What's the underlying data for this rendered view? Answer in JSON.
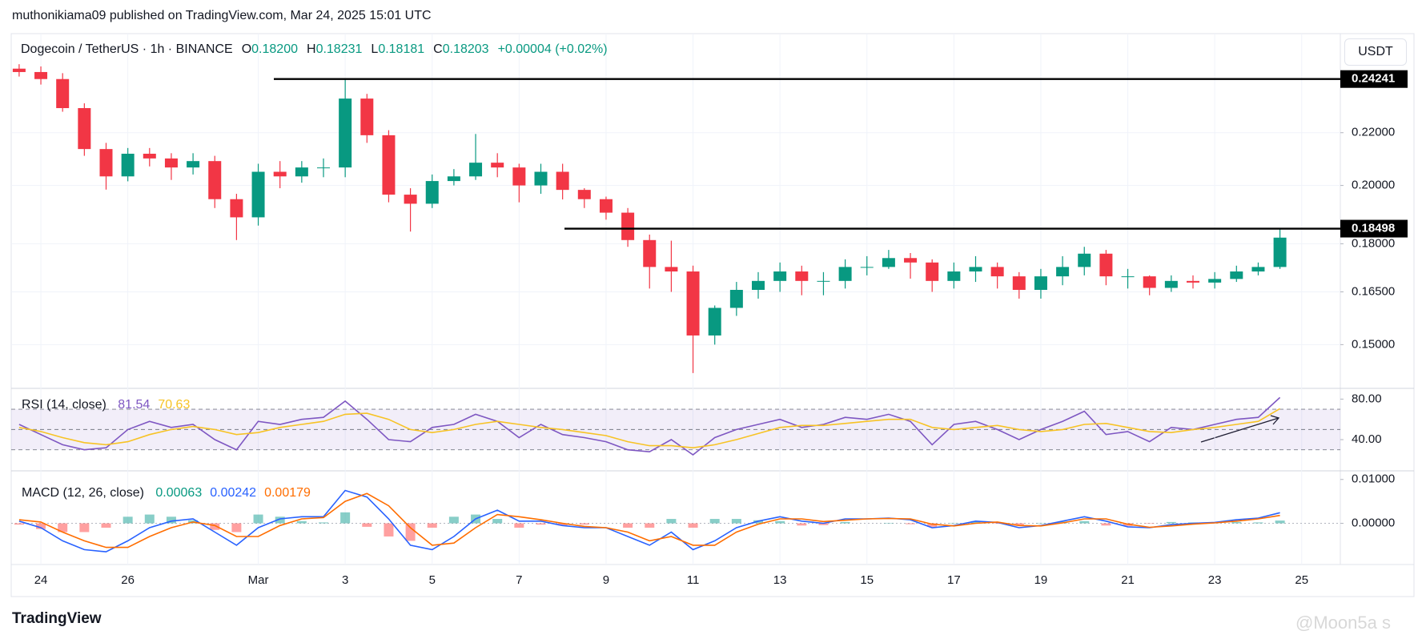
{
  "header": {
    "byline": "muthonikiama09 published on TradingView.com, Mar 24, 2025 15:01 UTC",
    "logo": "TradingView",
    "watermark": "@Moon5a s"
  },
  "chart_data": [
    {
      "type": "candlestick",
      "title": "Dogecoin / TetherUS · 1h · BINANCE",
      "currency": "USDT",
      "ohlc_legend": [
        {
          "key": "O",
          "value": "0.18200"
        },
        {
          "key": "H",
          "value": "0.18231"
        },
        {
          "key": "L",
          "value": "0.18181"
        },
        {
          "key": "C",
          "value": "0.18203"
        }
      ],
      "change": "+0.00004 (+0.02%)",
      "categories": [
        null,
        "24",
        null,
        null,
        null,
        "26",
        null,
        null,
        null,
        null,
        null,
        "Mar",
        null,
        null,
        null,
        "3",
        null,
        null,
        null,
        "5",
        null,
        null,
        null,
        "7",
        null,
        null,
        null,
        "9",
        null,
        null,
        null,
        "11",
        null,
        null,
        null,
        "13",
        null,
        null,
        null,
        "15",
        null,
        null,
        null,
        "17",
        null,
        null,
        null,
        "19",
        null,
        null,
        null,
        "21",
        null,
        null,
        null,
        "23",
        null,
        null,
        null,
        "25",
        null
      ],
      "open": [
        0.247,
        0.2455,
        0.2424,
        0.23,
        0.2136,
        0.2033,
        0.2118,
        0.21,
        0.2066,
        0.209,
        0.1951,
        0.1888,
        0.205,
        0.2033,
        0.2066,
        0.2066,
        0.234,
        0.219,
        0.1967,
        0.1935,
        0.2016,
        0.2033,
        0.2084,
        0.2066,
        0.2,
        0.205,
        0.1984,
        0.1951,
        0.1904,
        0.1812,
        0.1726,
        0.1712,
        0.1525,
        0.1603,
        0.1656,
        0.1683,
        0.1712,
        0.1683,
        0.1683,
        0.1726,
        0.1726,
        0.1754,
        0.174,
        0.1683,
        0.1712,
        0.1726,
        0.1697,
        0.1656,
        0.1697,
        0.1726,
        0.1768,
        0.1697,
        0.1697,
        0.1662,
        0.1683,
        0.1678,
        0.1689,
        0.1712,
        0.1726,
        null,
        null
      ],
      "high": [
        0.249,
        0.248,
        0.245,
        0.232,
        0.216,
        0.214,
        0.214,
        0.212,
        0.212,
        0.211,
        0.197,
        0.208,
        0.209,
        0.209,
        0.21,
        0.2424,
        0.236,
        0.221,
        0.199,
        0.204,
        0.206,
        0.2195,
        0.212,
        0.208,
        0.208,
        0.208,
        0.199,
        0.196,
        0.192,
        0.183,
        0.181,
        0.173,
        0.161,
        0.168,
        0.171,
        0.174,
        0.173,
        0.171,
        0.175,
        0.176,
        0.178,
        0.177,
        0.175,
        0.174,
        0.176,
        0.174,
        0.171,
        0.172,
        0.176,
        0.179,
        0.178,
        0.172,
        0.17,
        0.17,
        0.17,
        0.171,
        0.173,
        0.174,
        0.18498,
        null,
        null
      ],
      "low": [
        0.2435,
        0.24,
        0.2285,
        0.211,
        0.1985,
        0.2015,
        0.207,
        0.202,
        0.204,
        0.192,
        0.1812,
        0.186,
        0.199,
        0.201,
        0.203,
        0.203,
        0.216,
        0.194,
        0.184,
        0.192,
        0.2,
        0.202,
        0.203,
        0.194,
        0.197,
        0.195,
        0.192,
        0.188,
        0.179,
        0.166,
        0.165,
        0.1425,
        0.15,
        0.158,
        0.163,
        0.165,
        0.164,
        0.164,
        0.166,
        0.17,
        0.172,
        0.169,
        0.165,
        0.166,
        0.168,
        0.166,
        0.163,
        0.163,
        0.167,
        0.17,
        0.167,
        0.166,
        0.164,
        0.165,
        0.166,
        0.166,
        0.168,
        0.17,
        0.172,
        null,
        null
      ],
      "close": [
        0.2455,
        0.2424,
        0.23,
        0.2136,
        0.2033,
        0.2118,
        0.21,
        0.2066,
        0.209,
        0.1951,
        0.1888,
        0.205,
        0.2033,
        0.2066,
        0.2066,
        0.234,
        0.219,
        0.1967,
        0.1935,
        0.2016,
        0.2033,
        0.2084,
        0.2066,
        0.2,
        0.205,
        0.1984,
        0.1951,
        0.1904,
        0.1812,
        0.1726,
        0.1712,
        0.1525,
        0.1603,
        0.1656,
        0.1683,
        0.1712,
        0.1683,
        0.1683,
        0.1726,
        0.1726,
        0.1754,
        0.174,
        0.1683,
        0.1712,
        0.1726,
        0.1697,
        0.1656,
        0.1697,
        0.1726,
        0.1768,
        0.1697,
        0.1697,
        0.1662,
        0.1683,
        0.1678,
        0.1689,
        0.1712,
        0.1726,
        0.182,
        null,
        null
      ],
      "up_color": "#089981",
      "down_color": "#f23645",
      "log_scale": true,
      "ylim": [
        0.139,
        0.262
      ],
      "yticks": [
        {
          "value": 0.15,
          "label": "0.15000"
        },
        {
          "value": 0.165,
          "label": "0.16500"
        },
        {
          "value": 0.18,
          "label": "0.18000"
        },
        {
          "value": 0.2,
          "label": "0.20000"
        },
        {
          "value": 0.22,
          "label": "0.22000"
        }
      ],
      "levels": [
        0.24241,
        0.18498
      ],
      "level_color": "#000000",
      "grid": true
    },
    {
      "type": "line",
      "title": "RSI (14, close)",
      "ylim": [
        10,
        89
      ],
      "yticks": [
        {
          "value": 40,
          "label": "40.00"
        },
        {
          "value": 80,
          "label": "80.00"
        }
      ],
      "bands": [
        30,
        50,
        70
      ],
      "band_color": "#7e57c2",
      "series": [
        {
          "color": "#7e57c2",
          "legend_value": 81.54,
          "values": [
            55,
            45,
            35,
            30,
            32,
            50,
            58,
            52,
            55,
            40,
            30,
            58,
            55,
            60,
            62,
            78,
            60,
            40,
            38,
            52,
            55,
            65,
            58,
            42,
            55,
            45,
            42,
            38,
            30,
            28,
            40,
            25,
            42,
            50,
            55,
            60,
            52,
            55,
            62,
            60,
            65,
            58,
            35,
            55,
            58,
            50,
            40,
            50,
            58,
            68,
            45,
            48,
            38,
            52,
            50,
            55,
            60,
            62,
            81.54,
            null,
            null
          ]
        },
        {
          "color": "#f7c325",
          "legend_value": 70.63,
          "values": [
            52,
            48,
            42,
            37,
            35,
            38,
            45,
            50,
            53,
            50,
            45,
            47,
            52,
            55,
            58,
            65,
            66,
            60,
            50,
            47,
            50,
            55,
            58,
            55,
            52,
            50,
            47,
            44,
            38,
            34,
            34,
            32,
            35,
            40,
            46,
            52,
            54,
            54,
            56,
            58,
            60,
            60,
            52,
            50,
            52,
            54,
            50,
            48,
            50,
            55,
            56,
            52,
            48,
            47,
            50,
            52,
            55,
            58,
            70.63,
            null,
            null
          ]
        }
      ]
    },
    {
      "type": "macd",
      "title": "MACD (12, 26, close)",
      "ylim": [
        -0.0094,
        0.0116
      ],
      "yticks": [
        {
          "value": 0,
          "label": "0.00000"
        },
        {
          "value": 0.01,
          "label": "0.01000"
        }
      ],
      "histogram": {
        "color": "#089981",
        "up_color": "#26a69a",
        "down_color": "#ff5252",
        "legend_value": 0.00063,
        "values": [
          -0.0003,
          -0.0013,
          -0.002,
          -0.002,
          -0.001,
          0.0015,
          0.002,
          0.0015,
          0.0007,
          -0.0015,
          -0.002,
          0.002,
          0.0015,
          0.0005,
          0.0002,
          0.0025,
          -0.0008,
          -0.003,
          -0.004,
          -0.001,
          0.0015,
          0.002,
          0.001,
          -0.001,
          -0.0003,
          -0.0005,
          -0.0003,
          0,
          -0.001,
          -0.001,
          0.001,
          -0.001,
          0.001,
          0.001,
          0.0007,
          0.0005,
          -0.0005,
          -0.0004,
          0.0003,
          0,
          0.0001,
          -0.0002,
          -0.0008,
          0.0001,
          0.0005,
          -0.0001,
          -0.0005,
          0.0001,
          0.0004,
          0.0005,
          -0.0005,
          -0.0006,
          -0.0001,
          0.0003,
          0.0002,
          0.0001,
          0.0003,
          0.0002,
          0.00063,
          null,
          null
        ]
      },
      "series": [
        {
          "color": "#2962ff",
          "legend_value": 0.00242,
          "values": [
            0.0005,
            -0.001,
            -0.004,
            -0.006,
            -0.0065,
            -0.004,
            -0.001,
            0.0005,
            0.001,
            -0.002,
            -0.005,
            -0.001,
            0.001,
            0.0015,
            0.0015,
            0.0075,
            0.006,
            0.001,
            -0.005,
            -0.006,
            -0.003,
            0.001,
            0.003,
            0.0005,
            0.0005,
            -0.0005,
            -0.001,
            -0.001,
            -0.003,
            -0.005,
            -0.002,
            -0.006,
            -0.004,
            -0.001,
            0.0005,
            0.0015,
            0.0005,
            0,
            0.001,
            0.001,
            0.0012,
            0.0008,
            -0.001,
            -0.0005,
            0.0005,
            0.0002,
            -0.001,
            -0.0005,
            0.0005,
            0.0015,
            0.0005,
            -0.0008,
            -0.001,
            -0.0003,
            0,
            0.0002,
            0.0008,
            0.0012,
            0.00242,
            null,
            null
          ]
        },
        {
          "color": "#ff6d00",
          "legend_value": 0.00179,
          "values": [
            0.0008,
            0.0003,
            -0.002,
            -0.004,
            -0.0055,
            -0.0055,
            -0.003,
            -0.001,
            0.0003,
            -0.0005,
            -0.003,
            -0.003,
            -0.0005,
            0.001,
            0.0013,
            0.005,
            0.0068,
            0.004,
            -0.001,
            -0.005,
            -0.0045,
            -0.001,
            0.002,
            0.0015,
            0.0008,
            0,
            -0.0007,
            -0.001,
            -0.002,
            -0.004,
            -0.003,
            -0.005,
            -0.005,
            -0.002,
            -0.0002,
            0.001,
            0.001,
            0.0004,
            0.0007,
            0.001,
            0.0011,
            0.001,
            -0.0002,
            -0.0006,
            0,
            0.0003,
            -0.0005,
            -0.0006,
            0.0001,
            0.001,
            0.001,
            -0.0002,
            -0.0009,
            -0.0006,
            -0.0002,
            0.0001,
            0.0005,
            0.001,
            0.00179,
            null,
            null
          ]
        }
      ]
    }
  ]
}
